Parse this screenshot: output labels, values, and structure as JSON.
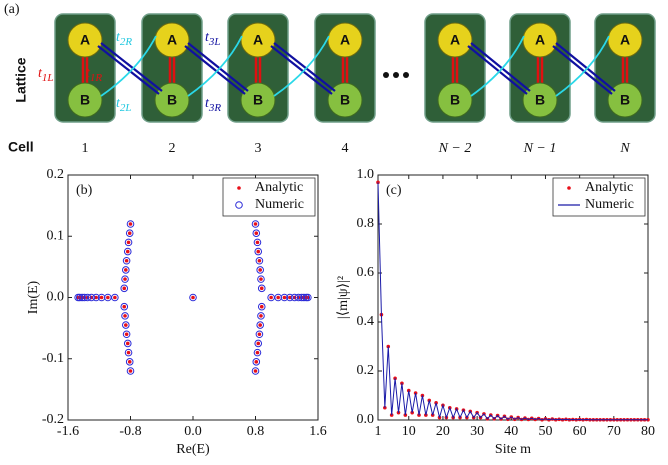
{
  "diagram": {
    "label": "(a)",
    "row_labels": [
      "Lattice",
      "Cell"
    ],
    "cells": [
      {
        "label": "1",
        "a": "A",
        "b": "B"
      },
      {
        "label": "2",
        "a": "A",
        "b": "B"
      },
      {
        "label": "3",
        "a": "A",
        "b": "B"
      },
      {
        "label": "4",
        "a": "A",
        "b": "B"
      },
      {
        "label": "N − 2",
        "a": "A",
        "b": "B"
      },
      {
        "label": "N − 1",
        "a": "A",
        "b": "B"
      },
      {
        "label": "N",
        "a": "A",
        "b": "B"
      }
    ],
    "hoppings": [
      {
        "symbol": "t",
        "sub": "1L"
      },
      {
        "symbol": "t",
        "sub": "1R"
      },
      {
        "symbol": "t",
        "sub": "2R"
      },
      {
        "symbol": "t",
        "sub": "2L"
      },
      {
        "symbol": "t",
        "sub": "3L"
      },
      {
        "symbol": "t",
        "sub": "3R"
      }
    ]
  },
  "chart_data": [
    {
      "type": "scatter",
      "title": "(b)",
      "x_label": "Re(E)",
      "y_label": "Im(E)",
      "x": [
        -0.8,
        -0.81,
        -0.825,
        -0.835,
        -0.85,
        -0.86,
        -0.87,
        -0.88,
        -0.8,
        -0.81,
        -0.825,
        -0.835,
        -0.85,
        -0.86,
        -0.87,
        -0.88,
        -1.47,
        -1.45,
        -1.42,
        -1.39,
        -1.35,
        -1.3,
        -1.24,
        -1.17,
        -1.09,
        -1.0,
        0,
        1.0,
        1.09,
        1.17,
        1.24,
        1.3,
        1.35,
        1.39,
        1.42,
        1.45,
        1.47,
        0.8,
        0.81,
        0.825,
        0.835,
        0.85,
        0.86,
        0.87,
        0.88,
        0.8,
        0.81,
        0.825,
        0.835,
        0.85,
        0.86,
        0.87,
        0.88
      ],
      "series": [
        {
          "name": "Analytic",
          "color": "#e8101a",
          "marker": "dot",
          "values": [
            0.12,
            0.105,
            0.09,
            0.075,
            0.06,
            0.045,
            0.03,
            0.015,
            -0.12,
            -0.105,
            -0.09,
            -0.075,
            -0.06,
            -0.045,
            -0.03,
            -0.015,
            0,
            0,
            0,
            0,
            0,
            0,
            0,
            0,
            0,
            0,
            0,
            0,
            0,
            0,
            0,
            0,
            0,
            0,
            0,
            0,
            0,
            0.12,
            0.105,
            0.09,
            0.075,
            0.06,
            0.045,
            0.03,
            0.015,
            -0.12,
            -0.105,
            -0.09,
            -0.075,
            -0.06,
            -0.045,
            -0.03,
            -0.015
          ]
        },
        {
          "name": "Numeric",
          "color": "#2b2bd8",
          "marker": "circle",
          "values": [
            0.12,
            0.105,
            0.09,
            0.075,
            0.06,
            0.045,
            0.03,
            0.015,
            -0.12,
            -0.105,
            -0.09,
            -0.075,
            -0.06,
            -0.045,
            -0.03,
            -0.015,
            0,
            0,
            0,
            0,
            0,
            0,
            0,
            0,
            0,
            0,
            0,
            0,
            0,
            0,
            0,
            0,
            0,
            0,
            0,
            0,
            0,
            0.12,
            0.105,
            0.09,
            0.075,
            0.06,
            0.045,
            0.03,
            0.015,
            -0.12,
            -0.105,
            -0.09,
            -0.075,
            -0.06,
            -0.045,
            -0.03,
            -0.015
          ]
        }
      ],
      "xlim": [
        -1.6,
        1.6
      ],
      "xticks": [
        -1.6,
        -0.8,
        {
          "value": 0,
          "label": "0.0"
        },
        0.8,
        1.6
      ],
      "ylim": [
        -0.2,
        0.2
      ],
      "yticks": [
        -0.2,
        -0.1,
        {
          "value": 0,
          "label": "0.0"
        },
        0.1,
        0.2
      ],
      "legend": "upper right"
    },
    {
      "type": "line",
      "title": "(c)",
      "x_label": "Site m",
      "y_label": "|⟨m|ψ⟩|²",
      "x": [
        1,
        2,
        3,
        4,
        5,
        6,
        7,
        8,
        9,
        10,
        11,
        12,
        13,
        14,
        15,
        16,
        17,
        18,
        19,
        20,
        21,
        22,
        23,
        24,
        25,
        26,
        27,
        28,
        29,
        30,
        31,
        32,
        33,
        34,
        35,
        36,
        37,
        38,
        39,
        40,
        41,
        42,
        43,
        44,
        45,
        46,
        47,
        48,
        49,
        50,
        51,
        52,
        53,
        54,
        55,
        56,
        57,
        58,
        59,
        60,
        61,
        62,
        63,
        64,
        65,
        66,
        67,
        68,
        69,
        70,
        71,
        72,
        73,
        74,
        75,
        76,
        77,
        78,
        79,
        80
      ],
      "series": [
        {
          "name": "Analytic",
          "color": "#e8101a",
          "marker": "dot",
          "values": [
            0.97,
            0.43,
            0.05,
            0.3,
            0.02,
            0.17,
            0.03,
            0.15,
            0.02,
            0.12,
            0.03,
            0.11,
            0.02,
            0.1,
            0.02,
            0.08,
            0.02,
            0.07,
            0.01,
            0.06,
            0.01,
            0.05,
            0.01,
            0.045,
            0.01,
            0.04,
            0.01,
            0.035,
            0.01,
            0.03,
            0.01,
            0.025,
            0.005,
            0.02,
            0.005,
            0.018,
            0.004,
            0.015,
            0.003,
            0.012,
            0.003,
            0.01,
            0.002,
            0.008,
            0.002,
            0.007,
            0.002,
            0.006,
            0.001,
            0.005,
            0.001,
            0.004,
            0.001,
            0.003,
            0.001,
            0.003,
            0.001,
            0.002,
            0.001,
            0.002,
            0.001,
            0.002,
            0.001,
            0.001,
            0.001,
            0.001,
            0.001,
            0.001,
            0.001,
            0.001,
            0.001,
            0.001,
            0.001,
            0.001,
            0.001,
            0.001,
            0.001,
            0.001,
            0.001,
            0.001
          ]
        },
        {
          "name": "Numeric",
          "color": "#1a1aa8",
          "marker": "line",
          "values": [
            0.97,
            0.43,
            0.05,
            0.3,
            0.02,
            0.17,
            0.03,
            0.15,
            0.02,
            0.12,
            0.03,
            0.11,
            0.02,
            0.1,
            0.02,
            0.08,
            0.02,
            0.07,
            0.01,
            0.06,
            0.01,
            0.05,
            0.01,
            0.045,
            0.01,
            0.04,
            0.01,
            0.035,
            0.01,
            0.03,
            0.01,
            0.025,
            0.005,
            0.02,
            0.005,
            0.018,
            0.004,
            0.015,
            0.003,
            0.012,
            0.003,
            0.01,
            0.002,
            0.008,
            0.002,
            0.007,
            0.002,
            0.006,
            0.001,
            0.005,
            0.001,
            0.004,
            0.001,
            0.003,
            0.001,
            0.003,
            0.001,
            0.002,
            0.001,
            0.002,
            0.001,
            0.002,
            0.001,
            0.001,
            0.001,
            0.001,
            0.001,
            0.001,
            0.001,
            0.001,
            0.001,
            0.001,
            0.001,
            0.001,
            0.001,
            0.001,
            0.001,
            0.001,
            0.001,
            0.001
          ]
        }
      ],
      "xlim": [
        1,
        80
      ],
      "xticks": [
        1,
        10,
        20,
        30,
        40,
        50,
        60,
        70,
        80
      ],
      "ylim": [
        0,
        1
      ],
      "yticks": [
        {
          "value": 0,
          "label": "0.0"
        },
        0.2,
        0.4,
        0.6,
        0.8,
        {
          "value": 1,
          "label": "1.0"
        }
      ],
      "legend": "upper right"
    }
  ]
}
